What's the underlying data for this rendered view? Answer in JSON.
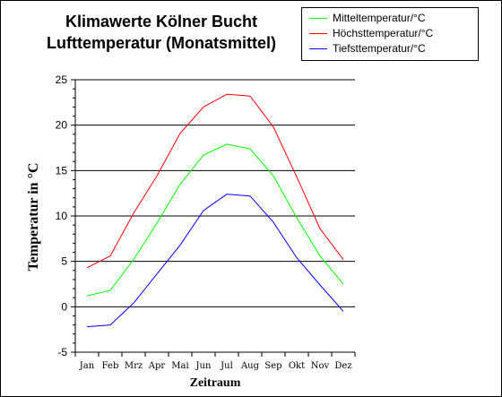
{
  "chart_data": {
    "type": "line",
    "title": [
      "Klimawerte Kölner Bucht",
      "Lufttemperatur (Monatsmittel)"
    ],
    "xlabel": "Zeitraum",
    "ylabel": "Temperatur in °C",
    "categories": [
      "Jan",
      "Feb",
      "Mrz",
      "Apr",
      "Mai",
      "Jun",
      "Jul",
      "Aug",
      "Sep",
      "Okt",
      "Nov",
      "Dez"
    ],
    "yticks": [
      -5,
      0,
      5,
      10,
      15,
      20,
      25
    ],
    "ylim": [
      -5,
      25
    ],
    "grid": true,
    "legend_position": "top-right",
    "series": [
      {
        "name": "Mitteltemperatur/°C",
        "color": "#00ff00",
        "values": [
          1.2,
          1.8,
          5.2,
          9.2,
          13.5,
          16.7,
          17.9,
          17.4,
          14.4,
          9.8,
          5.6,
          2.5
        ]
      },
      {
        "name": "Höchsttemperatur/°C",
        "color": "#ff0000",
        "values": [
          4.3,
          5.6,
          10.3,
          14.4,
          19.1,
          22.0,
          23.4,
          23.2,
          19.8,
          14.3,
          8.6,
          5.2
        ]
      },
      {
        "name": "Tiefsttemperatur/°C",
        "color": "#0000ff",
        "values": [
          -2.2,
          -2.0,
          0.4,
          3.6,
          6.8,
          10.6,
          12.4,
          12.2,
          9.3,
          5.4,
          2.4,
          -0.5
        ]
      }
    ]
  }
}
